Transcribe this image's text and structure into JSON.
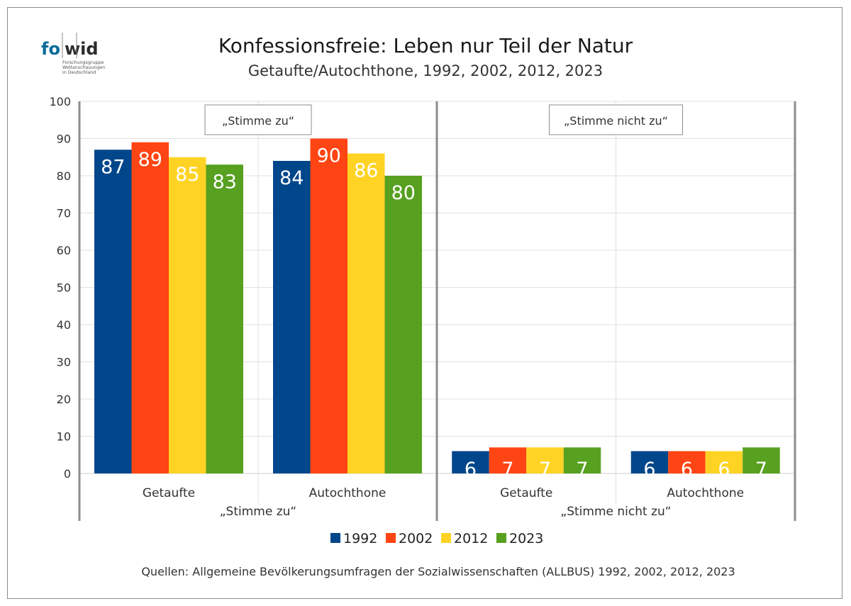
{
  "logo": {
    "letters_left": "fo",
    "letters_right": "wid",
    "subtitle_lines": [
      "Forschungsgruppe",
      "Weltanschauungen",
      "in Deutschland"
    ],
    "color_left": "#0a6a99",
    "color_right": "#2b2b2b"
  },
  "header": {
    "title": "Konfessionsfreie: Leben nur Teil der Natur",
    "subtitle": "Getaufte/Autochthone, 1992, 2002, 2012, 2023"
  },
  "footer": {
    "source": "Quellen: Allgemeine Bevölkerungsumfragen der Sozialwissenschaften (ALLBUS) 1992, 2002, 2012, 2023"
  },
  "chart_data": {
    "type": "bar",
    "ylim": [
      0,
      100
    ],
    "yticks": [
      0,
      10,
      20,
      30,
      40,
      50,
      60,
      70,
      80,
      90,
      100
    ],
    "grid": true,
    "legend_position": "bottom",
    "series": [
      {
        "name": "1992",
        "color": "#00468b"
      },
      {
        "name": "2002",
        "color": "#ff4513"
      },
      {
        "name": "2012",
        "color": "#ffd324"
      },
      {
        "name": "2023",
        "color": "#57a020"
      }
    ],
    "panels": [
      {
        "label": "„Stimme zu“",
        "box_label": "„Stimme zu“",
        "groups": [
          {
            "label": "Getaufte",
            "values": [
              87,
              89,
              85,
              83
            ]
          },
          {
            "label": "Autochthone",
            "values": [
              84,
              90,
              86,
              80
            ]
          }
        ]
      },
      {
        "label": "„Stimme nicht zu“",
        "box_label": "„Stimme nicht zu“",
        "groups": [
          {
            "label": "Getaufte",
            "values": [
              6,
              7,
              7,
              7
            ]
          },
          {
            "label": "Autochthone",
            "values": [
              6,
              6,
              6,
              7
            ]
          }
        ]
      }
    ]
  }
}
